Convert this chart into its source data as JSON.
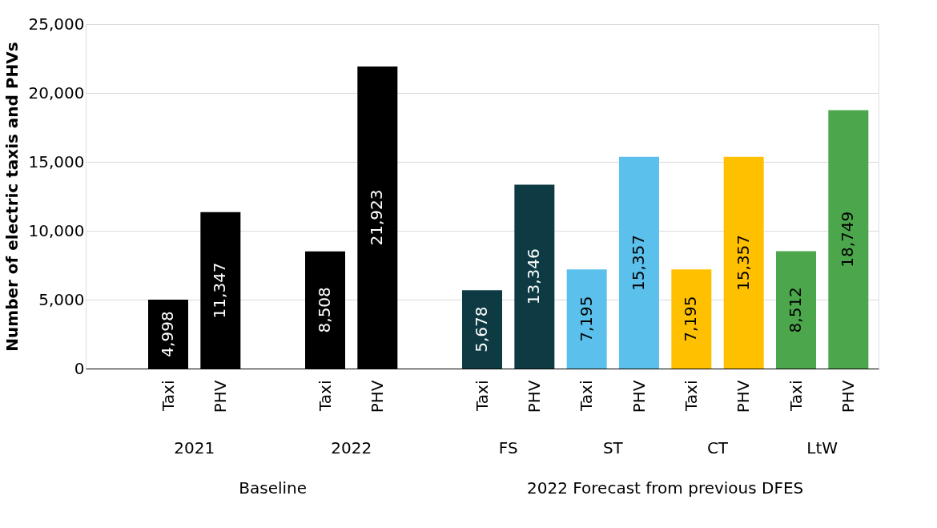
{
  "chart_data": {
    "type": "bar",
    "ylabel": "Number of electric taxis and PHVs",
    "categories": [
      null,
      "Taxi",
      "PHV",
      null,
      "Taxi",
      "PHV",
      null,
      "Taxi",
      "PHV",
      "Taxi",
      "PHV",
      "Taxi",
      "PHV",
      "Taxi",
      "PHV"
    ],
    "values": [
      null,
      4998,
      11347,
      null,
      8508,
      21923,
      null,
      5678,
      13346,
      7195,
      15357,
      7195,
      15357,
      8512,
      18749
    ],
    "colors": [
      "#000000",
      "#000000",
      "#000000",
      "#000000",
      "#000000",
      "#000000",
      "#000000",
      "#0e3b43",
      "#0e3b43",
      "#5bc0eb",
      "#5bc0eb",
      "#ffc000",
      "#ffc000",
      "#4ca64c",
      "#4ca64c"
    ],
    "value_labels": [
      null,
      "4,998",
      "11,347",
      null,
      "8,508",
      "21,923",
      null,
      "5,678",
      "13,346",
      "7,195",
      "15,357",
      "7,195",
      "15,357",
      "8,512",
      "18,749"
    ],
    "ylim": [
      0,
      25000
    ],
    "yticks": [
      0,
      {
        "value": 5000,
        "label": "5,000"
      },
      {
        "value": 10000,
        "label": "10,000"
      },
      {
        "value": 15000,
        "label": "15,000"
      },
      {
        "value": 20000,
        "label": "20,000"
      },
      {
        "value": 25000,
        "label": "25,000"
      }
    ],
    "grid": "y",
    "annotations": [
      "2021",
      "2022",
      "FS",
      "ST",
      "CT",
      "LtW",
      "Baseline",
      "2022 Forecast from previous DFES"
    ]
  }
}
